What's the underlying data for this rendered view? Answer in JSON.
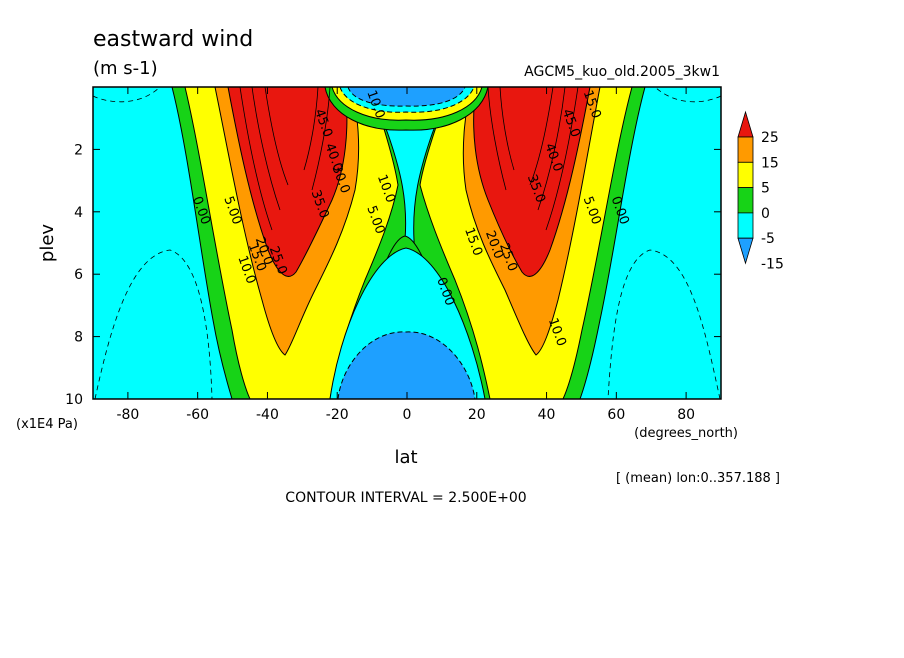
{
  "chart_data": {
    "type": "heatmap",
    "title": "eastward wind",
    "subtitle": "(m s-1)",
    "run_label": "AGCM5_kuo_old.2005_3kw1",
    "xlabel": "lat",
    "x_units": "(degrees_north)",
    "ylabel": "plev",
    "y_units": "(x1E4 Pa)",
    "xlim": [
      -90,
      90
    ],
    "ylim": [
      0,
      10
    ],
    "y_inverted": true,
    "x_ticks": [
      "-80",
      "-60",
      "-40",
      "-20",
      "0",
      "20",
      "40",
      "60",
      "80"
    ],
    "x_tick_values": [
      -80,
      -60,
      -40,
      -20,
      0,
      20,
      40,
      60,
      80
    ],
    "y_ticks": [
      "2",
      "4",
      "6",
      "8",
      "10"
    ],
    "y_tick_values": [
      2,
      4,
      6,
      8,
      10
    ],
    "contour_interval_text": "CONTOUR INTERVAL = 2.500E+00",
    "mean_note": "[ (mean) lon:0..357.188 ]",
    "colorbar": {
      "labels": [
        "25",
        "15",
        "5",
        "0",
        "-5",
        "-15"
      ],
      "bands": [
        {
          "color": "#e8170f",
          "from": 25,
          "to": 99
        },
        {
          "color": "#ff9a00",
          "from": 15,
          "to": 25
        },
        {
          "color": "#ffff00",
          "from": 5,
          "to": 15
        },
        {
          "color": "#17d317",
          "from": 0,
          "to": 5
        },
        {
          "color": "#00ffff",
          "from": -5,
          "to": 0
        },
        {
          "color": "#1ea0ff",
          "from": -15,
          "to": -5
        }
      ]
    },
    "contour_labels": [
      {
        "text": "0.00",
        "lat": -60,
        "p": 4.0
      },
      {
        "text": "5.00",
        "lat": -51,
        "p": 4.0
      },
      {
        "text": "10.0",
        "lat": -47,
        "p": 5.9
      },
      {
        "text": "15.0",
        "lat": -44,
        "p": 5.5
      },
      {
        "text": "20.0",
        "lat": -42,
        "p": 5.3
      },
      {
        "text": "25.0",
        "lat": -38,
        "p": 5.6
      },
      {
        "text": "35.0",
        "lat": -26,
        "p": 3.8
      },
      {
        "text": "40.0",
        "lat": -22,
        "p": 2.3
      },
      {
        "text": "30.0",
        "lat": -20,
        "p": 3.0
      },
      {
        "text": "45.0",
        "lat": -25,
        "p": 1.2
      },
      {
        "text": "10.0",
        "lat": -10,
        "p": 0.6
      },
      {
        "text": "10.0",
        "lat": -7,
        "p": 3.3
      },
      {
        "text": "5.00",
        "lat": -10,
        "p": 4.3
      },
      {
        "text": "0.00",
        "lat": 10,
        "p": 6.6
      },
      {
        "text": "15.0",
        "lat": 18,
        "p": 5.0
      },
      {
        "text": "20.0",
        "lat": 24,
        "p": 5.1
      },
      {
        "text": "25.0",
        "lat": 28,
        "p": 5.5
      },
      {
        "text": "35.0",
        "lat": 36,
        "p": 3.3
      },
      {
        "text": "40.0",
        "lat": 41,
        "p": 2.3
      },
      {
        "text": "45.0",
        "lat": 46,
        "p": 1.2
      },
      {
        "text": "10.0",
        "lat": 42,
        "p": 7.9
      },
      {
        "text": "5.00",
        "lat": 52,
        "p": 4.0
      },
      {
        "text": "0.00",
        "lat": 60,
        "p": 4.0
      },
      {
        "text": "15.0",
        "lat": 52,
        "p": 0.6
      }
    ],
    "fields": [
      {
        "name": "southern_jet",
        "u_min": 15,
        "u_max": 45
      },
      {
        "name": "northern_jet",
        "u_min": 15,
        "u_max": 45
      },
      {
        "name": "equatorial_easterlies_upper",
        "u_min": -10,
        "u_max": 0
      },
      {
        "name": "equatorial_easterlies_lower",
        "u_min": -10,
        "u_max": 0
      }
    ]
  }
}
